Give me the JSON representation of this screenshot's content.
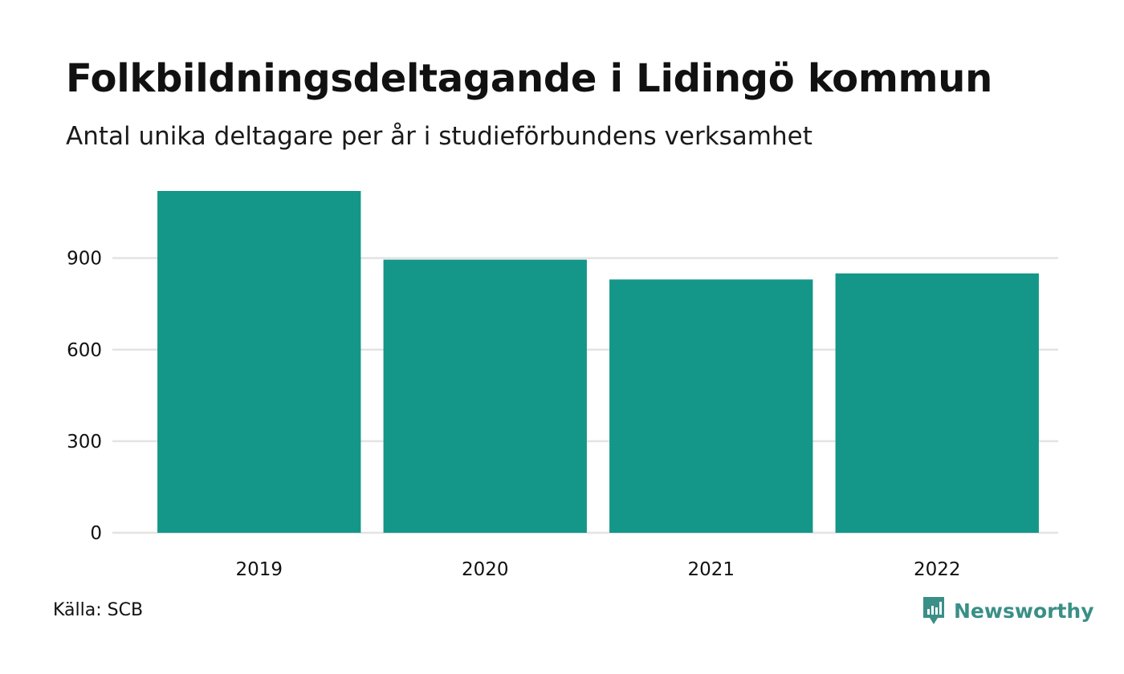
{
  "title": "Folkbildningsdeltagande i Lidingö kommun",
  "subtitle": "Antal unika deltagare per år i studieförbundens verksamhet",
  "source": "Källa: SCB",
  "brand": {
    "name": "Newsworthy",
    "icon": "newsworthy-chart-icon",
    "color": "#3a8f86"
  },
  "chart_data": {
    "type": "bar",
    "categories": [
      "2019",
      "2020",
      "2021",
      "2022"
    ],
    "values": [
      1120,
      895,
      830,
      850
    ],
    "ylim": [
      0,
      1120
    ],
    "yticks": [
      0,
      300,
      600,
      900
    ],
    "ytick_labels": [
      "0",
      "300",
      "600",
      "900"
    ],
    "grid": true,
    "bar_color": "#149688",
    "grid_color": "#e3e3e3",
    "xlabel": "",
    "ylabel": ""
  }
}
